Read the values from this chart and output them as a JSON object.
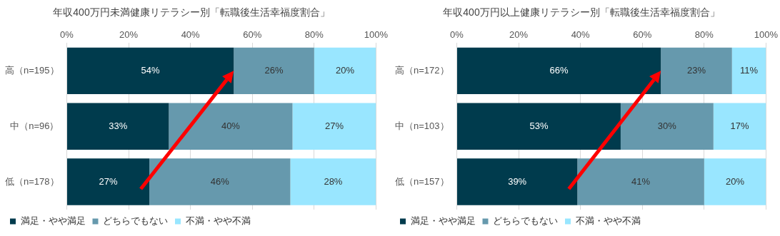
{
  "chart_data": [
    {
      "type": "bar",
      "orientation": "horizontal",
      "stacked": true,
      "title": "年収400万円未満健康リテラシー別「転職後生活幸福度割合」",
      "categories": [
        "高（n=195）",
        "中（n=96）",
        "低（n=178）"
      ],
      "series": [
        {
          "name": "満足・やや満足",
          "color": "#003b4d",
          "values": [
            54,
            33,
            26.7
          ],
          "value_labels": [
            "54%",
            "33%",
            "27%"
          ]
        },
        {
          "name": "どちらでもない",
          "color": "#6699ad",
          "values": [
            26,
            40,
            45.6
          ],
          "value_labels": [
            "26%",
            "40%",
            "46%"
          ]
        },
        {
          "name": "不満・やや不満",
          "color": "#99e6ff",
          "values": [
            20,
            27,
            27.7
          ],
          "value_labels": [
            "20%",
            "27%",
            "28%"
          ]
        }
      ],
      "xlim": [
        0,
        100
      ],
      "xticks": [
        {
          "value": 0,
          "label": "0%"
        },
        {
          "value": 20,
          "label": "20%"
        },
        {
          "value": 40,
          "label": "40%"
        },
        {
          "value": 60,
          "label": "60%"
        },
        {
          "value": 80,
          "label": "80%"
        },
        {
          "value": 100,
          "label": "100%"
        }
      ],
      "grid": "x",
      "legend": "bottom"
    },
    {
      "type": "bar",
      "orientation": "horizontal",
      "stacked": true,
      "title": "年収400万円以上健康リテラシー別「転職後生活幸福度割合」",
      "categories": [
        "高（n=172）",
        "中（n=103）",
        "低（n=157）"
      ],
      "series": [
        {
          "name": "満足・やや満足",
          "color": "#003b4d",
          "values": [
            66,
            53,
            39
          ],
          "value_labels": [
            "66%",
            "53%",
            "39%"
          ]
        },
        {
          "name": "どちらでもない",
          "color": "#6699ad",
          "values": [
            23,
            30,
            41
          ],
          "value_labels": [
            "23%",
            "30%",
            "41%"
          ]
        },
        {
          "name": "不満・やや不満",
          "color": "#99e6ff",
          "values": [
            11,
            17,
            20
          ],
          "value_labels": [
            "11%",
            "17%",
            "20%"
          ]
        }
      ],
      "xlim": [
        0,
        100
      ],
      "xticks": [
        {
          "value": 0,
          "label": "0%"
        },
        {
          "value": 20,
          "label": "20%"
        },
        {
          "value": 40,
          "label": "40%"
        },
        {
          "value": 60,
          "label": "60%"
        },
        {
          "value": 80,
          "label": "80%"
        },
        {
          "value": 100,
          "label": "100%"
        }
      ],
      "grid": "x",
      "legend": "bottom"
    }
  ]
}
